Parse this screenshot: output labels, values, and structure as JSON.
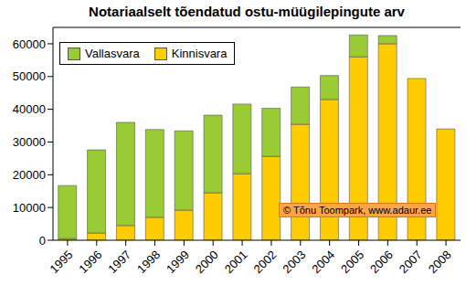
{
  "chart_data": {
    "type": "bar",
    "title": "Notariaalselt tõendatud ostu-müügilepingute arv",
    "categories": [
      "1995",
      "1996",
      "1997",
      "1998",
      "1999",
      "2000",
      "2001",
      "2002",
      "2003",
      "2004",
      "2005",
      "2006",
      "2007",
      "2008"
    ],
    "series": [
      {
        "name": "Kinnisvara",
        "color": "#ffcc00",
        "values": [
          500,
          2200,
          4500,
          7000,
          9200,
          14500,
          20300,
          25600,
          35400,
          43000,
          56000,
          60000,
          49400,
          34000
        ]
      },
      {
        "name": "Vallasvara",
        "color": "#99cc33",
        "values": [
          16200,
          25400,
          31500,
          26800,
          24200,
          23700,
          21300,
          14700,
          11400,
          7300,
          6700,
          2500,
          0,
          0
        ]
      }
    ],
    "stacked": true,
    "ylim": [
      0,
      65000
    ],
    "yticks": [
      0,
      10000,
      20000,
      30000,
      40000,
      50000,
      60000
    ],
    "grid": false,
    "legend": "upper left",
    "annotation": "© Tõnu Toompark, www.adaur.ee"
  }
}
